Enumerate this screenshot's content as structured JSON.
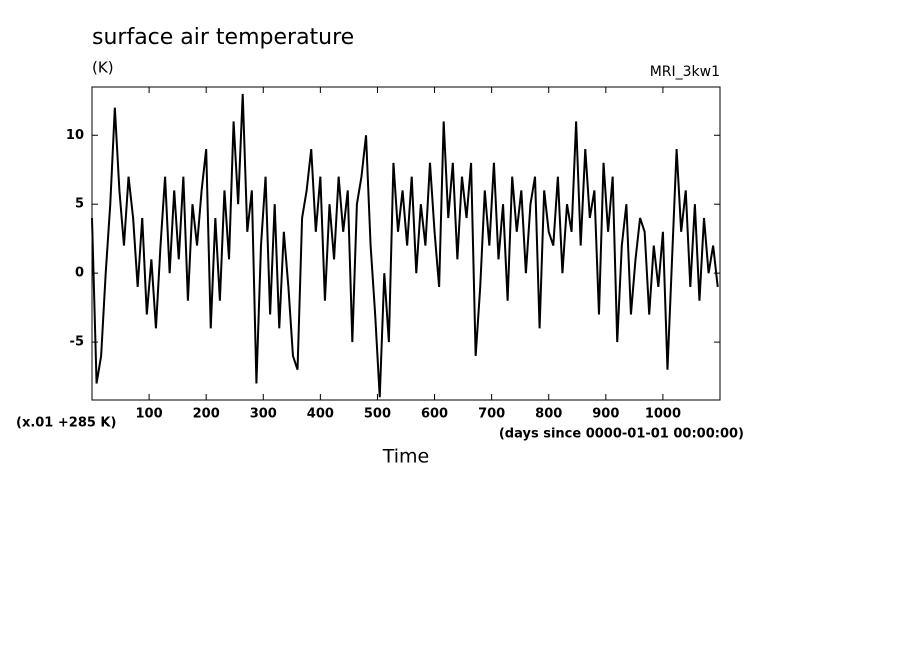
{
  "chart_data": {
    "type": "line",
    "title": "surface air temperature",
    "ylabel": "(K)",
    "annotation": "MRI_3kw1",
    "scale_note": "(x.01 +285 K)",
    "xlabel_units": "(days since 0000-01-01 00:00:00)",
    "xlabel": "Time",
    "color": "#000000",
    "xlim": [
      0,
      1100
    ],
    "ylim": [
      -9.2,
      13.5
    ],
    "xticks": [
      100,
      200,
      300,
      400,
      500,
      600,
      700,
      800,
      900,
      1000
    ],
    "yticks": [
      -5,
      0,
      5,
      10
    ],
    "x": [
      0,
      8,
      16,
      24,
      32,
      40,
      48,
      56,
      64,
      72,
      80,
      88,
      96,
      104,
      112,
      120,
      128,
      136,
      144,
      152,
      160,
      168,
      176,
      184,
      192,
      200,
      208,
      216,
      224,
      232,
      240,
      248,
      256,
      264,
      272,
      280,
      288,
      296,
      304,
      312,
      320,
      328,
      336,
      344,
      352,
      360,
      368,
      376,
      384,
      392,
      400,
      408,
      416,
      424,
      432,
      440,
      448,
      456,
      464,
      472,
      480,
      488,
      496,
      504,
      512,
      520,
      528,
      536,
      544,
      552,
      560,
      568,
      576,
      584,
      592,
      600,
      608,
      616,
      624,
      632,
      640,
      648,
      656,
      664,
      672,
      680,
      688,
      696,
      704,
      712,
      720,
      728,
      736,
      744,
      752,
      760,
      768,
      776,
      784,
      792,
      800,
      808,
      816,
      824,
      832,
      840,
      848,
      856,
      864,
      872,
      880,
      888,
      896,
      904,
      912,
      920,
      928,
      936,
      944,
      952,
      960,
      968,
      976,
      984,
      992,
      1000,
      1008,
      1016,
      1024,
      1032,
      1040,
      1048,
      1056,
      1064,
      1072,
      1080,
      1088,
      1096
    ],
    "values": [
      4,
      -8,
      -6,
      0,
      5,
      12,
      6,
      2,
      7,
      4,
      -1,
      4,
      -3,
      1,
      -4,
      2,
      7,
      0,
      6,
      1,
      7,
      -2,
      5,
      2,
      6,
      9,
      -4,
      4,
      -2,
      6,
      1,
      11,
      5,
      13,
      3,
      6,
      -8,
      2,
      7,
      -3,
      5,
      -4,
      3,
      -1,
      -6,
      -7,
      4,
      6,
      9,
      3,
      7,
      -2,
      5,
      1,
      7,
      3,
      6,
      -5,
      5,
      7,
      10,
      2,
      -3,
      -9,
      0,
      -5,
      8,
      3,
      6,
      2,
      7,
      0,
      5,
      2,
      8,
      3,
      -1,
      11,
      4,
      8,
      1,
      7,
      4,
      8,
      -6,
      -1,
      6,
      2,
      8,
      1,
      5,
      -2,
      7,
      3,
      6,
      0,
      5,
      7,
      -4,
      6,
      3,
      2,
      7,
      0,
      5,
      3,
      11,
      2,
      9,
      4,
      6,
      -3,
      8,
      3,
      7,
      -5,
      2,
      5,
      -3,
      1,
      4,
      3,
      -3,
      2,
      -1,
      3,
      -7,
      1,
      9,
      3,
      6,
      -1,
      5,
      -2,
      4,
      0,
      2,
      -1
    ]
  }
}
